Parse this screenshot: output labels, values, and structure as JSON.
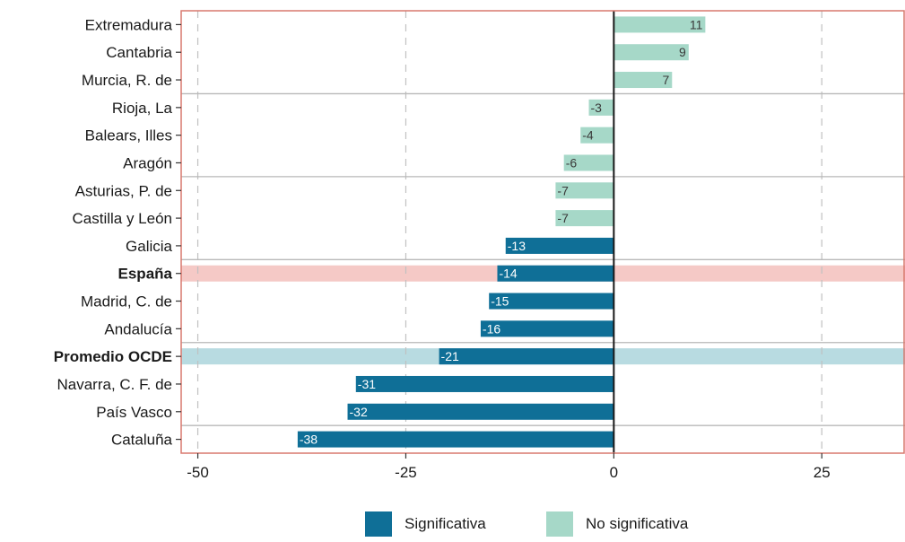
{
  "chart_data": {
    "type": "bar",
    "orientation": "horizontal",
    "categories": [
      "Extremadura",
      "Cantabria",
      "Murcia, R. de",
      "Rioja, La",
      "Balears, Illes",
      "Aragón",
      "Asturias, P. de",
      "Castilla y León",
      "Galicia",
      "España",
      "Madrid, C. de",
      "Andalucía",
      "Promedio OCDE",
      "Navarra, C. F. de",
      "País Vasco",
      "Cataluña"
    ],
    "values": [
      11,
      9,
      7,
      -3,
      -4,
      -6,
      -7,
      -7,
      -13,
      -14,
      -15,
      -16,
      -21,
      -31,
      -32,
      -38
    ],
    "significance": [
      "No significativa",
      "No significativa",
      "No significativa",
      "No significativa",
      "No significativa",
      "No significativa",
      "No significativa",
      "No significativa",
      "Significativa",
      "Significativa",
      "Significativa",
      "Significativa",
      "Significativa",
      "Significativa",
      "Significativa",
      "Significativa"
    ],
    "bold_categories": [
      "España",
      "Promedio OCDE"
    ],
    "highlight_rows": [
      {
        "category": "España",
        "color": "#f5c9c6"
      },
      {
        "category": "Promedio OCDE",
        "color": "#b8dbe1"
      }
    ],
    "group_separators_after": [
      "Murcia, R. de",
      "Aragón",
      "Galicia",
      "Andalucía",
      "País Vasco"
    ],
    "xlim": [
      -52,
      35
    ],
    "xticks": [
      -50,
      -25,
      0,
      25
    ],
    "xticklabels": [
      "-50",
      "-25",
      "0",
      "25"
    ],
    "title": "",
    "xlabel": "",
    "ylabel": "",
    "grid": "vertical dashed",
    "legend_position": "bottom",
    "colors": {
      "Significativa": "#0f6f97",
      "No significativa": "#a6d8c8",
      "frame": "#d9786e",
      "grid": "#c0c0c0",
      "separator": "#b8b8b8",
      "zero_line": "#1a1a1a",
      "label_on_dark": "#ffffff",
      "label_on_light": "#3a3a3a"
    }
  },
  "legend": {
    "items": [
      {
        "label": "Significativa",
        "color": "#0f6f97"
      },
      {
        "label": "No significativa",
        "color": "#a6d8c8"
      }
    ]
  }
}
